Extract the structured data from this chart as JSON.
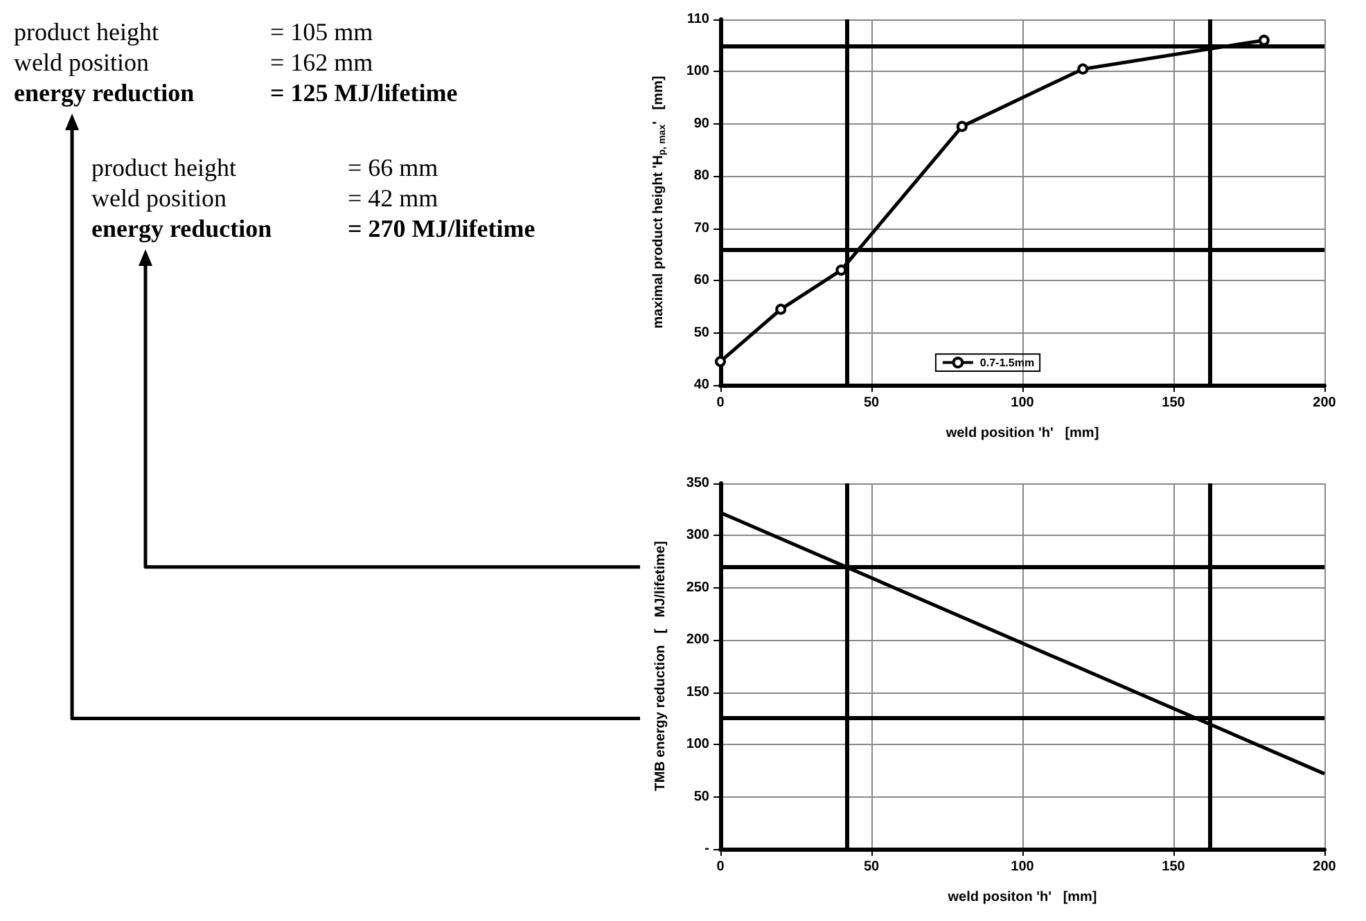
{
  "chart_data": [
    {
      "type": "line",
      "xlabel": "weld position 'h'   [mm]",
      "ylabel": "maximal product height 'H$_{p, max}$'   [mm]",
      "annotations": [
        "product height = 105 mm",
        "weld position = 162 mm",
        "energy reduction = 125 MJ/lifetime",
        "product height = 66 mm",
        "weld position = 42 mm",
        "energy reduction = 270 MJ/lifetime"
      ],
      "series": [
        {
          "name": "0.7-1.5mm",
          "color": "#000000",
          "x": [
            0,
            20,
            40,
            80,
            120,
            180
          ],
          "values": [
            44.5,
            54.5,
            62,
            89.5,
            100.5,
            106
          ]
        }
      ],
      "xlim": [
        0,
        200
      ],
      "xticks": [
        0,
        50,
        100,
        150,
        200
      ],
      "ylim": [
        40,
        110
      ],
      "yticks": [
        40,
        50,
        60,
        70,
        80,
        90,
        100,
        110
      ],
      "ref_lines": [
        {
          "axis": "y",
          "value": 105,
          "color": "#000000"
        },
        {
          "axis": "x",
          "value": 162,
          "color": "#000000"
        },
        {
          "axis": "y",
          "value": 66,
          "color": "#000000"
        },
        {
          "axis": "x",
          "value": 42,
          "color": "#000000"
        }
      ],
      "grid": true,
      "legend": "bottom",
      "marker": "circle",
      "line_style": "solid"
    },
    {
      "type": "line",
      "xlabel": "weld positon 'h'   [mm]",
      "ylabel": "TMB energy reduction   [   MJ/lifetime]",
      "series": [
        {
          "color": "#000000",
          "x": [
            0,
            200
          ],
          "values": [
            322,
            72
          ]
        }
      ],
      "xlim": [
        0,
        200
      ],
      "xticks": [
        0,
        50,
        100,
        150,
        200
      ],
      "ylim": [
        0,
        350
      ],
      "yticks": [
        {
          "value": 0,
          "label": "-"
        },
        50,
        100,
        150,
        200,
        250,
        300,
        350
      ],
      "ref_lines": [
        {
          "axis": "y",
          "value": 270,
          "color": "#000000"
        },
        {
          "axis": "x",
          "value": 42,
          "color": "#000000"
        },
        {
          "axis": "y",
          "value": 125,
          "color": "#000000"
        },
        {
          "axis": "x",
          "value": 162,
          "color": "#000000"
        }
      ],
      "grid": true,
      "marker": "none",
      "line_style": "solid"
    }
  ]
}
